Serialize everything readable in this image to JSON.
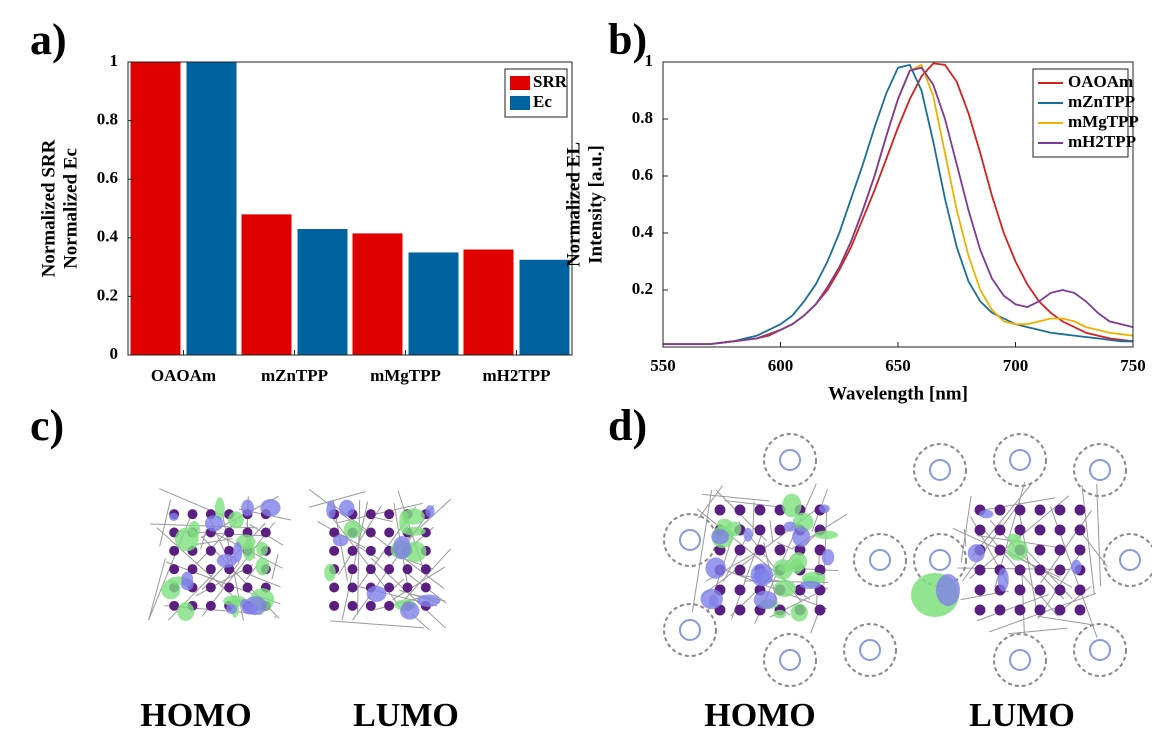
{
  "chart_data": [
    {
      "type": "bar",
      "panel": "a)",
      "ylabel": [
        "Normalized SRR",
        "Normalized Ec"
      ],
      "categories": [
        "OAOAm",
        "mZnTPP",
        "mMgTPP",
        "mH2TPP"
      ],
      "series": [
        {
          "name": "SRR",
          "color": "#e00000",
          "values": [
            1,
            0.48,
            0.415,
            0.36
          ]
        },
        {
          "name": "Ec",
          "color": "#0063a0",
          "values": [
            1,
            0.43,
            0.35,
            0.325
          ]
        }
      ],
      "ylim": [
        0,
        1
      ],
      "yticks": [
        0,
        0.2,
        0.4,
        0.6,
        0.8,
        1
      ],
      "legend": "top-right"
    },
    {
      "type": "line",
      "panel": "b)",
      "xlabel": "Wavelength [nm]",
      "ylabel": [
        "Normalized EL",
        "Intensity [a.u.]"
      ],
      "x": [
        550,
        555,
        560,
        565,
        570,
        575,
        580,
        585,
        590,
        595,
        600,
        605,
        610,
        615,
        620,
        625,
        630,
        635,
        640,
        645,
        650,
        655,
        660,
        665,
        670,
        675,
        680,
        685,
        690,
        695,
        700,
        705,
        710,
        715,
        720,
        725,
        730,
        735,
        740,
        745,
        750
      ],
      "series": [
        {
          "name": "OAOAm",
          "color": "#d62020",
          "values": [
            0.01,
            0.01,
            0.01,
            0.01,
            0.01,
            0.015,
            0.02,
            0.025,
            0.03,
            0.04,
            0.06,
            0.08,
            0.11,
            0.15,
            0.2,
            0.27,
            0.35,
            0.45,
            0.55,
            0.66,
            0.77,
            0.87,
            0.95,
            0.995,
            0.99,
            0.93,
            0.82,
            0.68,
            0.53,
            0.4,
            0.3,
            0.22,
            0.16,
            0.12,
            0.09,
            0.07,
            0.05,
            0.04,
            0.03,
            0.025,
            0.02
          ]
        },
        {
          "name": "mZnTPP",
          "color": "#1a6f9a",
          "values": [
            0.01,
            0.01,
            0.01,
            0.01,
            0.01,
            0.015,
            0.02,
            0.03,
            0.04,
            0.06,
            0.08,
            0.11,
            0.16,
            0.22,
            0.3,
            0.4,
            0.52,
            0.64,
            0.77,
            0.89,
            0.98,
            0.99,
            0.9,
            0.72,
            0.52,
            0.35,
            0.23,
            0.16,
            0.12,
            0.1,
            0.08,
            0.07,
            0.06,
            0.05,
            0.045,
            0.04,
            0.035,
            0.03,
            0.025,
            0.02,
            0.02
          ]
        },
        {
          "name": "mMgTPP",
          "color": "#f0b000",
          "values": [
            0.01,
            0.01,
            0.01,
            0.01,
            0.01,
            0.015,
            0.02,
            0.025,
            0.03,
            0.045,
            0.06,
            0.08,
            0.11,
            0.15,
            0.21,
            0.28,
            0.37,
            0.48,
            0.6,
            0.74,
            0.87,
            0.97,
            0.99,
            0.88,
            0.68,
            0.48,
            0.32,
            0.2,
            0.13,
            0.09,
            0.08,
            0.08,
            0.09,
            0.1,
            0.1,
            0.09,
            0.07,
            0.06,
            0.05,
            0.045,
            0.04
          ]
        },
        {
          "name": "mH2TPP",
          "color": "#7e3a96",
          "values": [
            0.01,
            0.01,
            0.01,
            0.01,
            0.01,
            0.015,
            0.02,
            0.025,
            0.03,
            0.045,
            0.06,
            0.08,
            0.11,
            0.15,
            0.21,
            0.28,
            0.37,
            0.48,
            0.6,
            0.74,
            0.87,
            0.97,
            0.98,
            0.92,
            0.8,
            0.64,
            0.48,
            0.34,
            0.24,
            0.18,
            0.15,
            0.14,
            0.16,
            0.19,
            0.2,
            0.19,
            0.16,
            0.12,
            0.09,
            0.08,
            0.07
          ]
        }
      ],
      "xlim": [
        550,
        750
      ],
      "xticks": [
        550,
        600,
        650,
        700,
        750
      ],
      "ylim": [
        0,
        1
      ],
      "yticks": [
        0.2,
        0.4,
        0.6,
        0.8,
        1
      ],
      "legend": "top-right"
    }
  ],
  "orbitals": {
    "c": {
      "panel": "c)",
      "labels": [
        "HOMO",
        "LUMO"
      ]
    },
    "d": {
      "panel": "d)",
      "labels": [
        "HOMO",
        "LUMO"
      ]
    }
  }
}
